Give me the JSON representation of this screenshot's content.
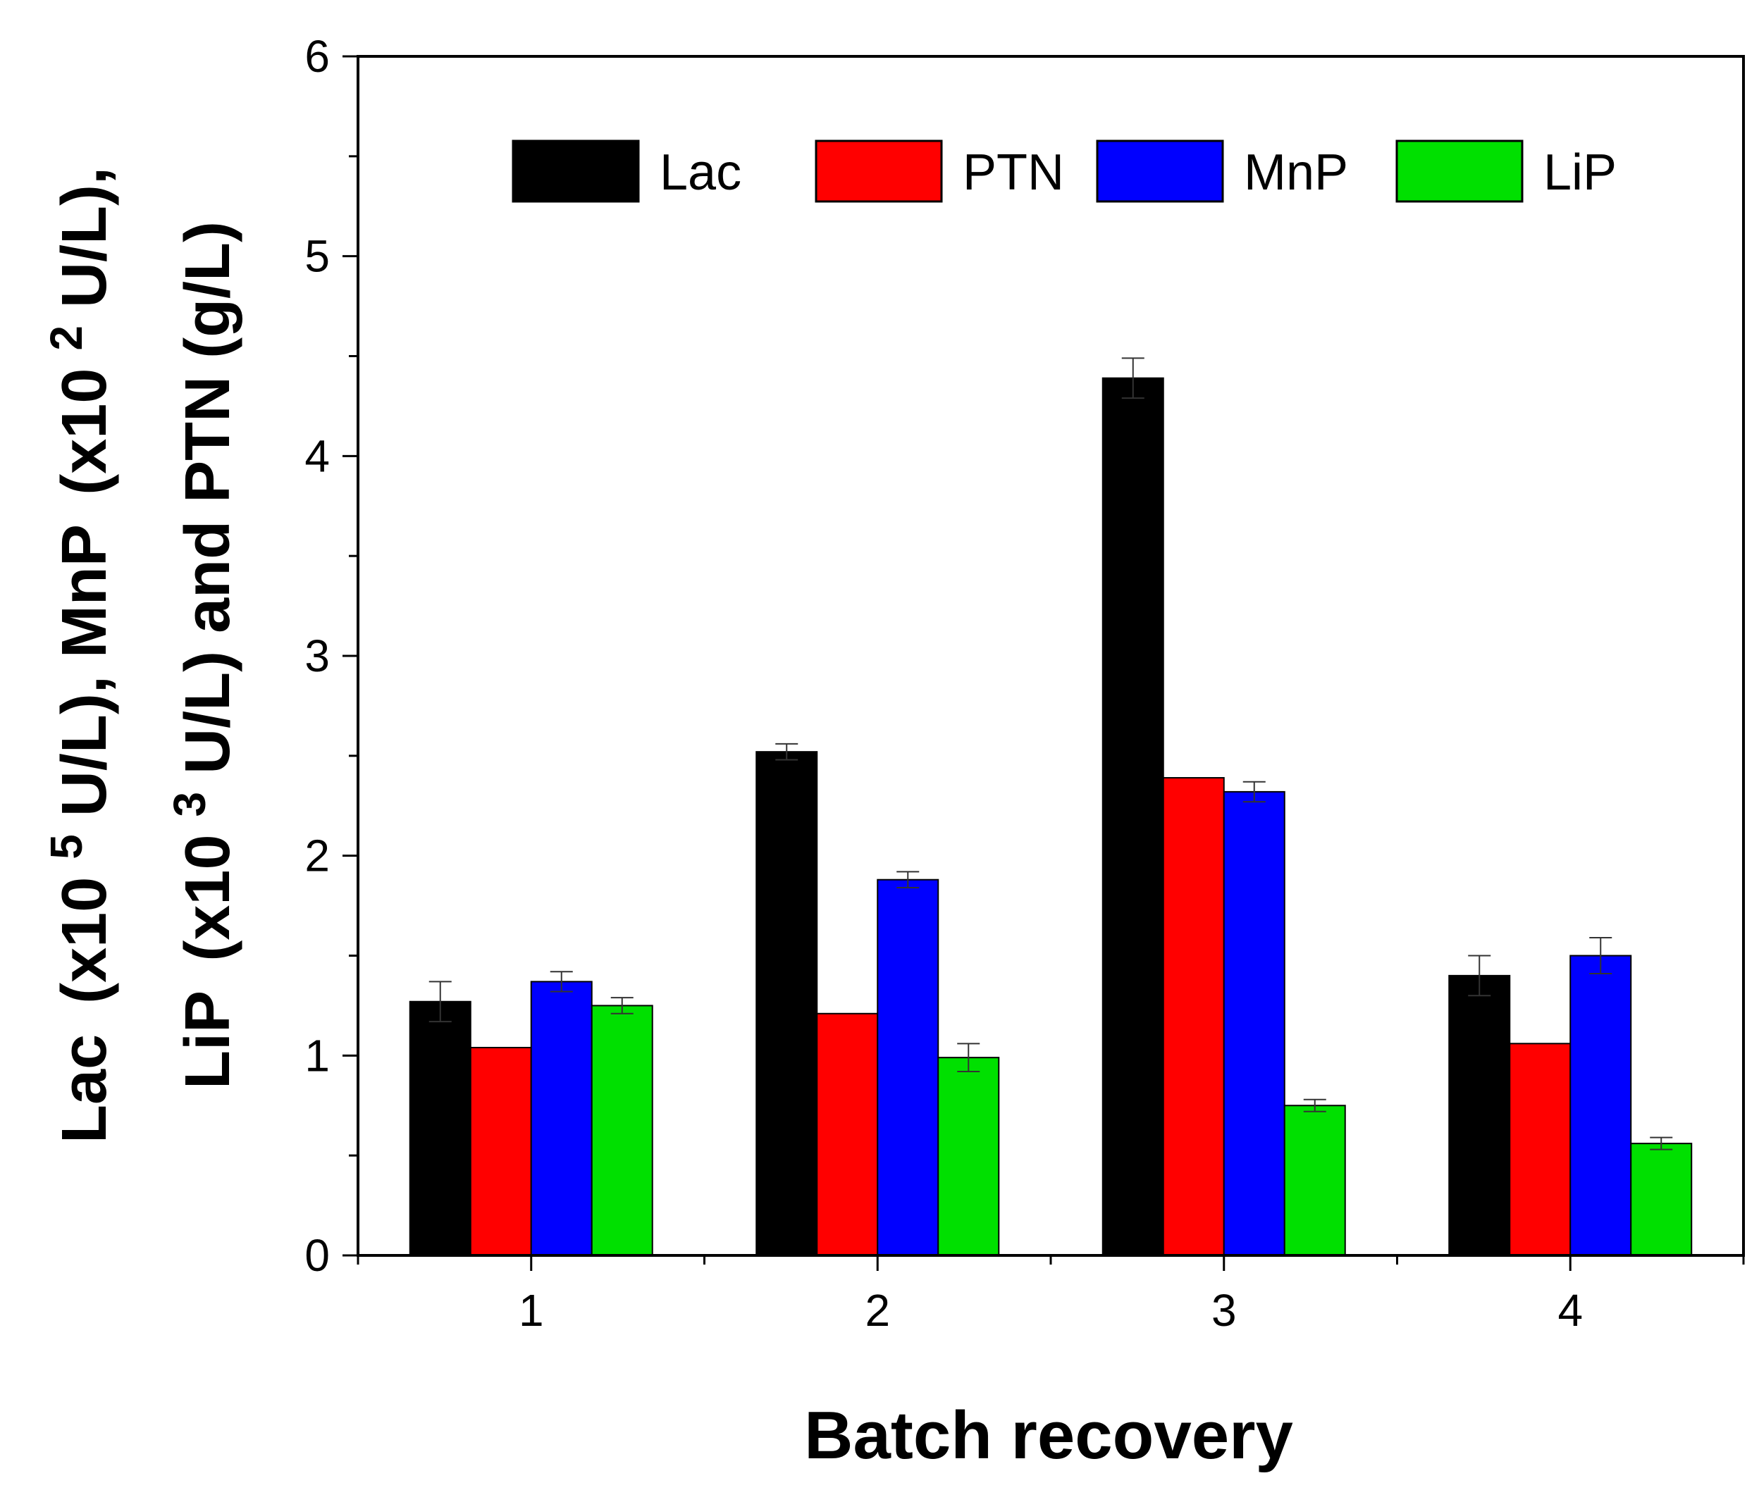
{
  "chart_data": {
    "type": "bar",
    "title": "",
    "xlabel": "Batch recovery",
    "ylabel": {
      "line1": {
        "lac": "Lac",
        "p1": "(x10",
        "sup1": "5",
        "u1": " U/L), ",
        "mnp": "MnP",
        "p2": "(x10",
        "sup2": "2",
        "u2": " U/L),"
      },
      "line2": {
        "lip": "LiP",
        "p3": "(x10",
        "sup3": "3",
        "u3": " U/L) ",
        "and": "and PTN (g/L)"
      }
    },
    "categories": [
      "1",
      "2",
      "3",
      "4"
    ],
    "ylim": [
      0,
      6
    ],
    "yticks": [
      "0",
      "1",
      "2",
      "3",
      "4",
      "5",
      "6"
    ],
    "legend_position": "top",
    "series": [
      {
        "name": "Lac",
        "color": "#000000",
        "values": [
          1.27,
          2.52,
          4.39,
          1.4
        ],
        "errors": [
          0.1,
          0.04,
          0.1,
          0.1
        ]
      },
      {
        "name": "PTN",
        "color": "#ff0000",
        "values": [
          1.04,
          1.21,
          2.39,
          1.06
        ],
        "errors": [
          0.0,
          0.0,
          0.0,
          0.0
        ]
      },
      {
        "name": "MnP",
        "color": "#0000ff",
        "values": [
          1.37,
          1.88,
          2.32,
          1.5
        ],
        "errors": [
          0.05,
          0.04,
          0.05,
          0.09
        ]
      },
      {
        "name": "LiP",
        "color": "#00e000",
        "values": [
          1.25,
          0.99,
          0.75,
          0.56
        ],
        "errors": [
          0.04,
          0.07,
          0.03,
          0.03
        ]
      }
    ]
  }
}
